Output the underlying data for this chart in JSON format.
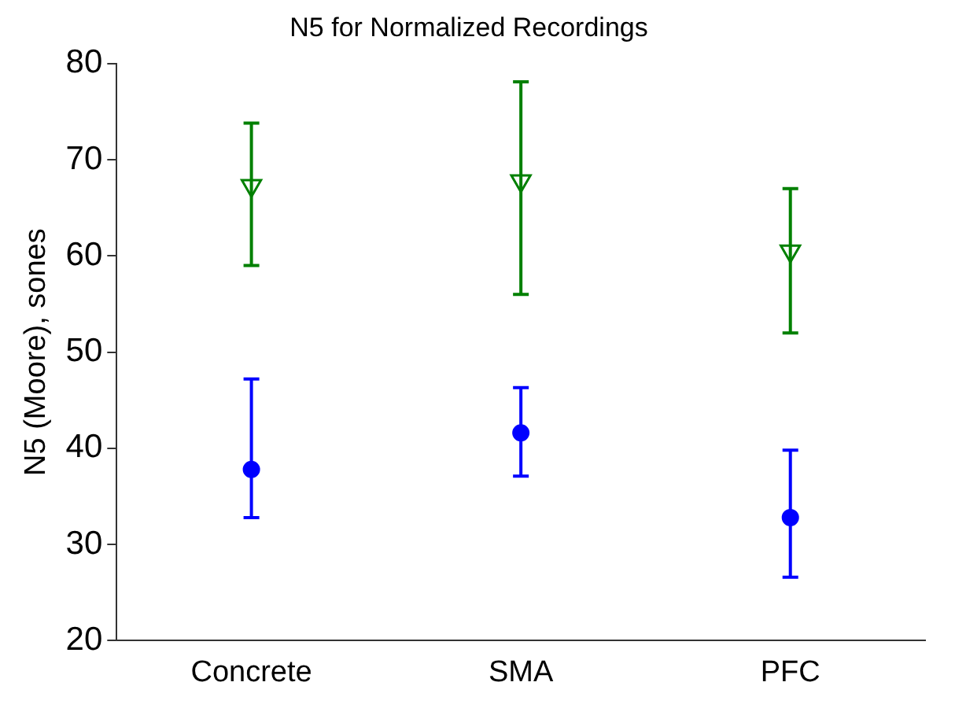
{
  "chart_data": {
    "type": "scatter",
    "title": "N5 for Normalized Recordings",
    "ylabel": "N5 (Moore), sones",
    "categories": [
      "Concrete",
      "SMA",
      "PFC"
    ],
    "ylim": [
      20,
      80
    ],
    "yticks": [
      20,
      30,
      40,
      50,
      60,
      70,
      80
    ],
    "grid": false,
    "legend": false,
    "series": [
      {
        "color": "#008000",
        "marker": "triangle",
        "values": [
          67.3,
          67.8,
          60.5
        ],
        "errors": [
          [
            59,
            73.8
          ],
          [
            56,
            78.1
          ],
          [
            52,
            67
          ]
        ]
      },
      {
        "color": "#0000ff",
        "marker": "circle",
        "values": [
          37.8,
          41.6,
          32.8
        ],
        "errors": [
          [
            32.8,
            47.2
          ],
          [
            37.1,
            46.3
          ],
          [
            26.6,
            39.8
          ]
        ]
      }
    ]
  }
}
